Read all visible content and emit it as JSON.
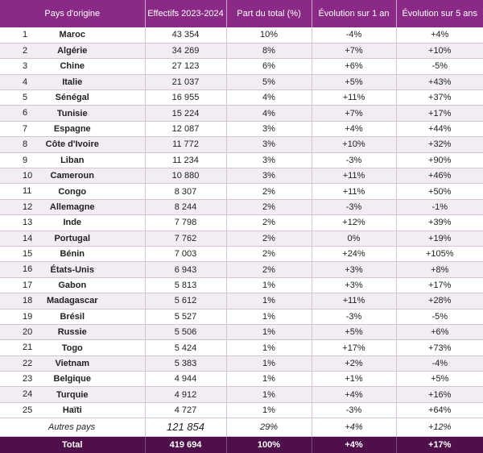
{
  "headers": {
    "country": "Pays d'origine",
    "count": "Effectifs 2023-2024",
    "share": "Part du total (%)",
    "evo1": "Évolution sur 1 an",
    "evo5": "Évolution sur 5 ans"
  },
  "rows": [
    {
      "rank": "1",
      "country": "Maroc",
      "count": "43 354",
      "share": "10%",
      "evo1": "-4%",
      "evo5": "+4%"
    },
    {
      "rank": "2",
      "country": "Algérie",
      "count": "34 269",
      "share": "8%",
      "evo1": "+7%",
      "evo5": "+10%"
    },
    {
      "rank": "3",
      "country": "Chine",
      "count": "27 123",
      "share": "6%",
      "evo1": "+6%",
      "evo5": "-5%"
    },
    {
      "rank": "4",
      "country": "Italie",
      "count": "21 037",
      "share": "5%",
      "evo1": "+5%",
      "evo5": "+43%"
    },
    {
      "rank": "5",
      "country": "Sénégal",
      "count": "16 955",
      "share": "4%",
      "evo1": "+11%",
      "evo5": "+37%"
    },
    {
      "rank": "6",
      "country": "Tunisie",
      "count": "15 224",
      "share": "4%",
      "evo1": "+7%",
      "evo5": "+17%"
    },
    {
      "rank": "7",
      "country": "Espagne",
      "count": "12 087",
      "share": "3%",
      "evo1": "+4%",
      "evo5": "+44%"
    },
    {
      "rank": "8",
      "country": "Côte d'Ivoire",
      "count": "11 772",
      "share": "3%",
      "evo1": "+10%",
      "evo5": "+32%"
    },
    {
      "rank": "9",
      "country": "Liban",
      "count": "11 234",
      "share": "3%",
      "evo1": "-3%",
      "evo5": "+90%"
    },
    {
      "rank": "10",
      "country": "Cameroun",
      "count": "10 880",
      "share": "3%",
      "evo1": "+11%",
      "evo5": "+46%"
    },
    {
      "rank": "11",
      "country": "Congo",
      "count": "8 307",
      "share": "2%",
      "evo1": "+11%",
      "evo5": "+50%"
    },
    {
      "rank": "12",
      "country": "Allemagne",
      "count": "8 244",
      "share": "2%",
      "evo1": "-3%",
      "evo5": "-1%"
    },
    {
      "rank": "13",
      "country": "Inde",
      "count": "7 798",
      "share": "2%",
      "evo1": "+12%",
      "evo5": "+39%"
    },
    {
      "rank": "14",
      "country": "Portugal",
      "count": "7 762",
      "share": "2%",
      "evo1": "0%",
      "evo5": "+19%"
    },
    {
      "rank": "15",
      "country": "Bénin",
      "count": "7 003",
      "share": "2%",
      "evo1": "+24%",
      "evo5": "+105%"
    },
    {
      "rank": "16",
      "country": "États-Unis",
      "count": "6 943",
      "share": "2%",
      "evo1": "+3%",
      "evo5": "+8%"
    },
    {
      "rank": "17",
      "country": "Gabon",
      "count": "5 813",
      "share": "1%",
      "evo1": "+3%",
      "evo5": "+17%"
    },
    {
      "rank": "18",
      "country": "Madagascar",
      "count": "5 612",
      "share": "1%",
      "evo1": "+11%",
      "evo5": "+28%"
    },
    {
      "rank": "19",
      "country": "Brésil",
      "count": "5 527",
      "share": "1%",
      "evo1": "-3%",
      "evo5": "-5%"
    },
    {
      "rank": "20",
      "country": "Russie",
      "count": "5 506",
      "share": "1%",
      "evo1": "+5%",
      "evo5": "+6%"
    },
    {
      "rank": "21",
      "country": "Togo",
      "count": "5 424",
      "share": "1%",
      "evo1": "+17%",
      "evo5": "+73%"
    },
    {
      "rank": "22",
      "country": "Vietnam",
      "count": "5 383",
      "share": "1%",
      "evo1": "+2%",
      "evo5": "-4%"
    },
    {
      "rank": "23",
      "country": "Belgique",
      "count": "4 944",
      "share": "1%",
      "evo1": "+1%",
      "evo5": "+5%"
    },
    {
      "rank": "24",
      "country": "Turquie",
      "count": "4 912",
      "share": "1%",
      "evo1": "+4%",
      "evo5": "+16%"
    },
    {
      "rank": "25",
      "country": "Haïti",
      "count": "4 727",
      "share": "1%",
      "evo1": "-3%",
      "evo5": "+64%"
    }
  ],
  "other": {
    "label": "Autres pays",
    "count": "121 854",
    "share": "29%",
    "evo1": "+4%",
    "evo5": "+12%"
  },
  "total": {
    "label": "Total",
    "count": "419 694",
    "share": "100%",
    "evo1": "+4%",
    "evo5": "+17%"
  },
  "colors": {
    "header": "#8a2a86",
    "footer": "#4f0f4a",
    "stripe": "#f2ecf3"
  }
}
